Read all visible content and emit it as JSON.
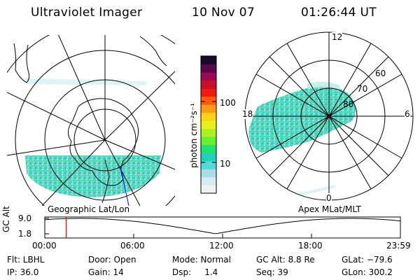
{
  "header": {
    "instrument": "Ultraviolet Imager",
    "date": "10 Nov 07",
    "time": "01:26:44 UT"
  },
  "left_map": {
    "label": "Geographic Lat/Lon"
  },
  "right_map": {
    "label": "Apex MLat/MLT",
    "mlt_labels": {
      "top": "12",
      "left": "18",
      "right": "6",
      "bottom": "0"
    },
    "lat_labels": [
      "60",
      "70",
      "80"
    ]
  },
  "colorbar": {
    "unit_label": "photon cm⁻²s⁻¹",
    "tick_labels": [
      "100",
      "10"
    ],
    "colors": [
      "#f2f2f2",
      "#d8ecf0",
      "#a6dde8",
      "#55d8d8",
      "#22d0b8",
      "#22e070",
      "#66ee33",
      "#aaf022",
      "#e6f01a",
      "#ffd21a",
      "#ff9a14",
      "#ff5a10",
      "#f01a10",
      "#c8102a",
      "#9a0a50",
      "#5a064a",
      "#1a0a2a"
    ]
  },
  "timeline": {
    "axis_label": "GC Alt",
    "y_ticks": [
      "9.0",
      "1.8"
    ],
    "x_ticks": [
      "00:00",
      "06:00",
      "12:00",
      "18:00",
      "23:59"
    ],
    "current_time_fraction": 0.0602
  },
  "info": {
    "filter_label": "Flt: LBHL",
    "door_label": "Door: Open",
    "mode_label": "Mode: Normal",
    "gc_alt_label": "GC Alt: 8.8 Re",
    "glat_label": "GLat: −79.6",
    "ip_label": "IP: 36.0",
    "gain_label": "Gain: 14",
    "dsp_label": "Dsp:     1.4",
    "seq_label": "Seq: 39",
    "glon_label": "GLon: 300.2"
  }
}
